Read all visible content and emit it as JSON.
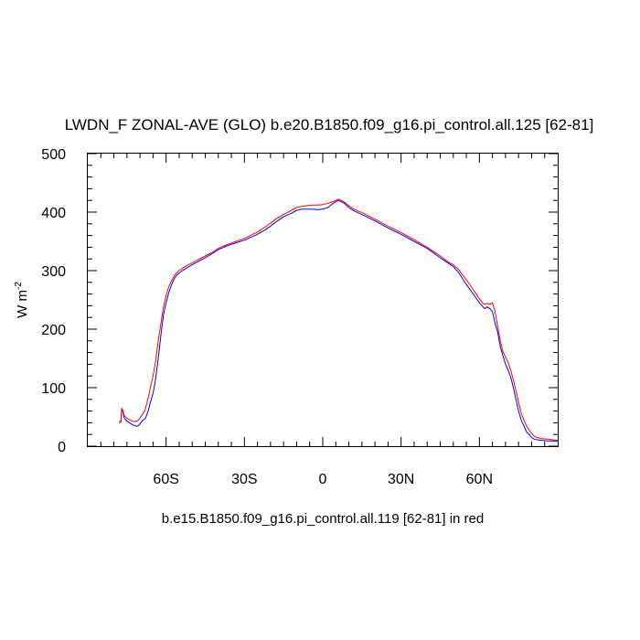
{
  "chart_data": {
    "type": "line",
    "title": "LWDN_F ZONAL-AVE (GLO) b.e20.B1850.f09_g16.pi_control.all.125 [62-81]",
    "subtitle": "b.e15.B1850.f09_g16.pi_control.all.119 [62-81] in red",
    "ylabel": "W m",
    "ylabel_sup": "-2",
    "xlabel": "",
    "xlim": [
      -90,
      90
    ],
    "ylim": [
      0,
      500
    ],
    "x_ticks": [
      {
        "value": -60,
        "label": "60S"
      },
      {
        "value": -30,
        "label": "30S"
      },
      {
        "value": 0,
        "label": "0"
      },
      {
        "value": 30,
        "label": "30N"
      },
      {
        "value": 60,
        "label": "60N"
      }
    ],
    "y_ticks": [
      0,
      100,
      200,
      300,
      400,
      500
    ],
    "grid": false,
    "series": [
      {
        "color": "#0000ff",
        "x": [
          -78,
          -77.3,
          -77,
          -76.5,
          -76,
          -75,
          -74,
          -73,
          -72,
          -71,
          -70,
          -69,
          -68,
          -67,
          -66,
          -65,
          -64,
          -63,
          -62,
          -61,
          -60,
          -59,
          -58,
          -57,
          -56,
          -55,
          -54,
          -53,
          -52,
          -50,
          -48,
          -45,
          -42,
          -40,
          -38,
          -35,
          -30,
          -25,
          -22,
          -20,
          -18,
          -15,
          -12,
          -10,
          -8,
          -6,
          -4,
          -2,
          0,
          2,
          4,
          5,
          6,
          8,
          10,
          12,
          15,
          20,
          25,
          30,
          35,
          40,
          45,
          48,
          50,
          52,
          54,
          56,
          58,
          60,
          61,
          62,
          63,
          64,
          65,
          66,
          67,
          68,
          69,
          70,
          71,
          72,
          73,
          74,
          75,
          76,
          77,
          78,
          79,
          80,
          81,
          82,
          84,
          86,
          88,
          90
        ],
        "values": [
          40,
          42,
          62,
          58,
          48,
          43,
          40,
          37,
          35,
          34,
          38,
          44,
          47,
          58,
          75,
          90,
          115,
          150,
          190,
          225,
          245,
          262,
          275,
          285,
          292,
          296,
          299,
          302,
          305,
          310,
          315,
          322,
          330,
          336,
          340,
          345,
          352,
          362,
          370,
          376,
          383,
          392,
          398,
          403,
          405,
          405,
          405,
          404,
          405,
          408,
          415,
          418,
          420,
          416,
          408,
          402,
          396,
          385,
          373,
          362,
          350,
          338,
          322,
          313,
          307,
          297,
          283,
          270,
          258,
          245,
          240,
          235,
          238,
          235,
          230,
          210,
          195,
          170,
          155,
          140,
          130,
          118,
          100,
          80,
          60,
          45,
          35,
          25,
          20,
          15,
          12,
          11,
          10,
          9,
          9,
          8
        ]
      },
      {
        "color": "#ff0000",
        "x": [
          -78,
          -77.3,
          -77,
          -76.5,
          -76,
          -75,
          -74,
          -73,
          -72,
          -71,
          -70,
          -69,
          -68,
          -67,
          -66,
          -65,
          -64,
          -63,
          -62,
          -61,
          -60,
          -59,
          -58,
          -57,
          -56,
          -55,
          -54,
          -53,
          -52,
          -50,
          -48,
          -45,
          -42,
          -40,
          -38,
          -35,
          -30,
          -25,
          -22,
          -20,
          -18,
          -15,
          -12,
          -10,
          -8,
          -6,
          -4,
          -2,
          0,
          2,
          4,
          5,
          6,
          8,
          10,
          12,
          15,
          20,
          25,
          30,
          35,
          40,
          45,
          48,
          50,
          52,
          54,
          56,
          58,
          60,
          61,
          62,
          63,
          64,
          65,
          66,
          67,
          68,
          69,
          70,
          71,
          72,
          73,
          74,
          75,
          76,
          77,
          78,
          79,
          80,
          81,
          82,
          84,
          86,
          88,
          90
        ],
        "values": [
          40,
          44,
          65,
          60,
          52,
          48,
          45,
          43,
          42,
          43,
          48,
          55,
          62,
          80,
          100,
          120,
          145,
          180,
          210,
          238,
          258,
          272,
          282,
          290,
          296,
          300,
          303,
          306,
          309,
          313,
          318,
          325,
          332,
          338,
          342,
          347,
          355,
          366,
          375,
          381,
          388,
          396,
          403,
          408,
          410,
          411,
          412,
          412,
          413,
          415,
          418,
          420,
          422,
          418,
          411,
          405,
          399,
          388,
          376,
          365,
          353,
          340,
          325,
          315,
          310,
          302,
          290,
          278,
          265,
          252,
          246,
          242,
          244,
          242,
          245,
          230,
          205,
          180,
          162,
          152,
          143,
          130,
          113,
          95,
          75,
          57,
          45,
          35,
          28,
          22,
          17,
          15,
          13,
          12,
          11,
          10
        ]
      }
    ]
  }
}
